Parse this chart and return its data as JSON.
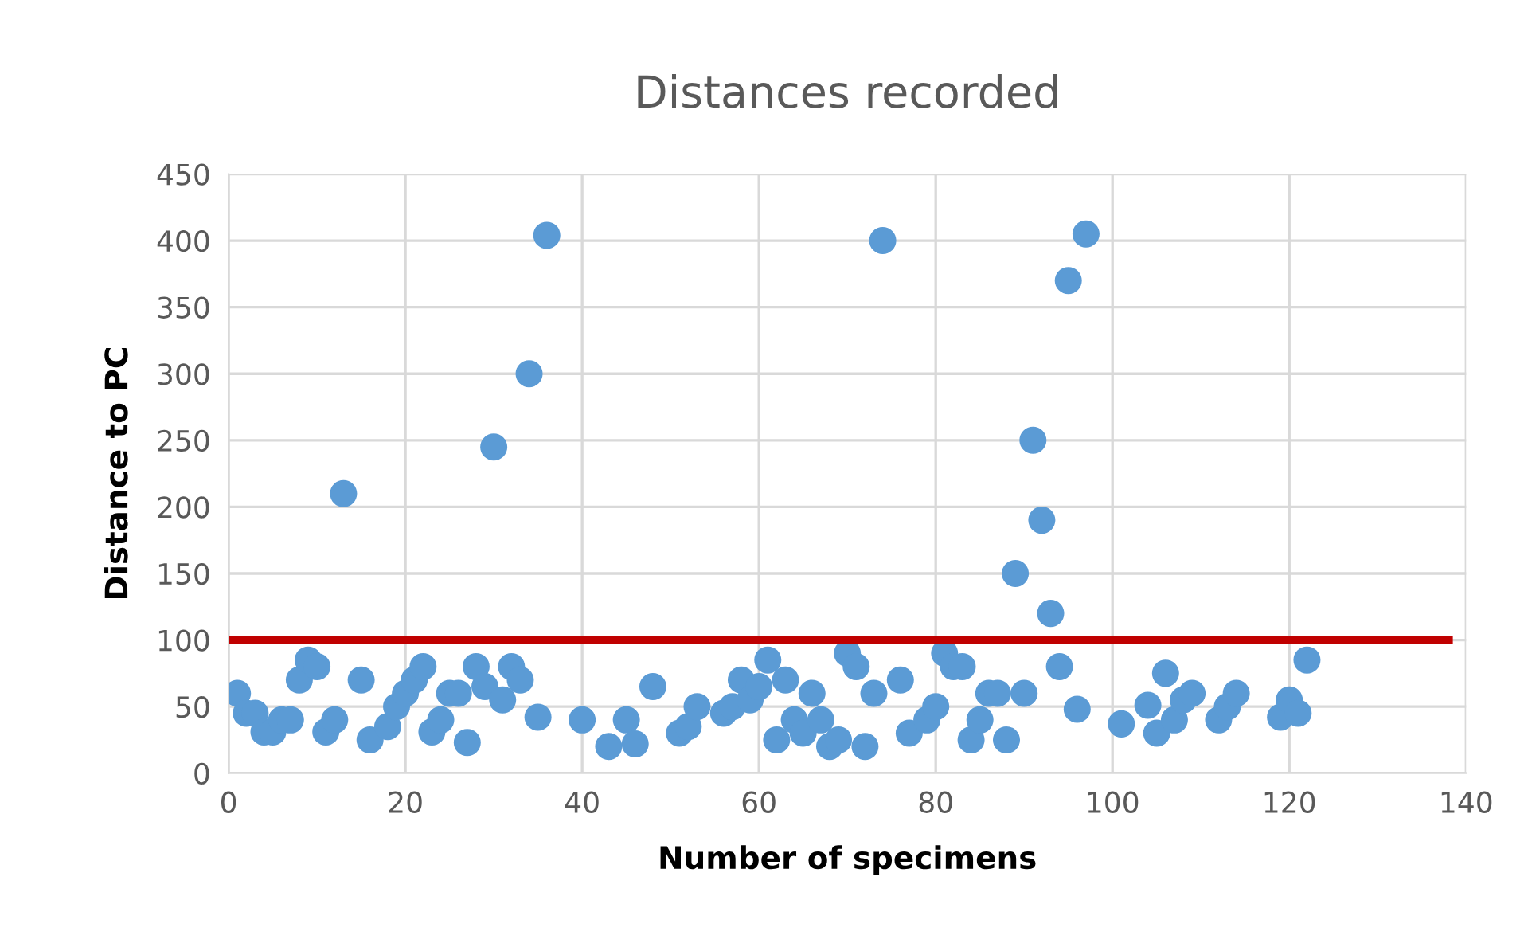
{
  "chart_data": {
    "type": "scatter",
    "title": "Distances recorded",
    "xlabel": "Number of specimens",
    "ylabel": "Distance to PC",
    "xlim": [
      0,
      140
    ],
    "xticks": [
      0,
      20,
      40,
      60,
      80,
      100,
      120,
      140
    ],
    "ylim": [
      0,
      450
    ],
    "yticks": [
      0,
      50,
      100,
      150,
      200,
      250,
      300,
      350,
      400,
      450
    ],
    "grid": true,
    "legend": false,
    "marker": "circle",
    "series": [
      {
        "color": "#5b9bd5",
        "x": [
          1,
          2,
          3,
          4,
          5,
          6,
          7,
          8,
          9,
          10,
          11,
          12,
          13,
          15,
          16,
          18,
          19,
          20,
          21,
          22,
          23,
          24,
          25,
          26,
          27,
          28,
          29,
          30,
          31,
          32,
          33,
          34,
          35,
          36,
          40,
          43,
          45,
          46,
          48,
          51,
          52,
          53,
          56,
          57,
          58,
          59,
          60,
          61,
          62,
          63,
          64,
          65,
          66,
          67,
          68,
          69,
          70,
          71,
          72,
          73,
          74,
          76,
          77,
          79,
          80,
          81,
          82,
          83,
          84,
          85,
          86,
          87,
          88,
          89,
          90,
          91,
          92,
          93,
          94,
          95,
          96,
          97,
          101,
          104,
          105,
          106,
          107,
          108,
          109,
          112,
          113,
          114,
          119,
          120,
          121,
          122
        ],
        "values": [
          60,
          45,
          45,
          31,
          31,
          40,
          40,
          70,
          85,
          80,
          31,
          40,
          210,
          70,
          25,
          35,
          50,
          60,
          70,
          80,
          31,
          40,
          60,
          60,
          23,
          80,
          65,
          245,
          55,
          80,
          70,
          300,
          42,
          404,
          40,
          20,
          40,
          22,
          65,
          30,
          35,
          50,
          45,
          50,
          70,
          55,
          65,
          85,
          25,
          70,
          40,
          30,
          60,
          40,
          20,
          25,
          90,
          80,
          20,
          60,
          400,
          70,
          30,
          40,
          50,
          90,
          80,
          80,
          25,
          40,
          60,
          60,
          25,
          150,
          60,
          250,
          190,
          120,
          80,
          370,
          48,
          405,
          37,
          51,
          30,
          75,
          40,
          55,
          60,
          40,
          50,
          60,
          42,
          55,
          45,
          85
        ]
      },
      {
        "type": "line",
        "color": "#c00000",
        "marker": "none",
        "line_style": "solid",
        "x": [
          0,
          138
        ],
        "values": [
          100,
          100
        ]
      }
    ]
  }
}
